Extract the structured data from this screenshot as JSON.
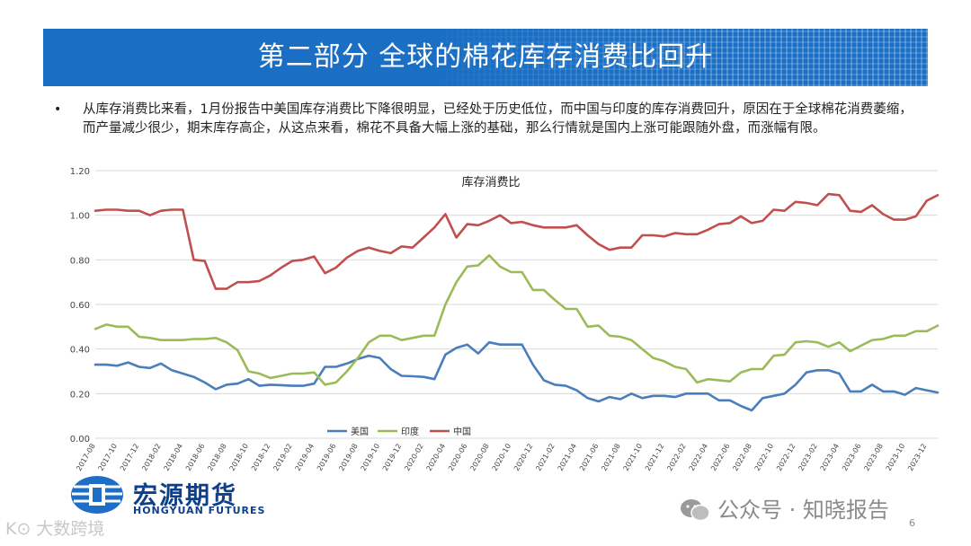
{
  "header": {
    "title": "第二部分  全球的棉花库存消费比回升"
  },
  "body": {
    "bullet": "•",
    "paragraph": "从库存消费比来看，1月份报告中美国库存消费比下降很明显，已经处于历史低位，而中国与印度的库存消费回升，原因在于全球棉花消费萎缩，而产量减少很少，期末库存高企，从这点来看，棉花不具备大幅上涨的基础，那么行情就是国内上涨可能跟随外盘，而涨幅有限。"
  },
  "chart_data": {
    "type": "line",
    "title": "库存消费比",
    "xlabel": "",
    "ylabel": "",
    "ylim": [
      0,
      1.2
    ],
    "yticks": [
      "0.00",
      "0.20",
      "0.40",
      "0.60",
      "0.80",
      "1.00",
      "1.20"
    ],
    "grid": true,
    "legend": "bottom-center",
    "x": [
      "2017-08",
      "2017-09",
      "2017-10",
      "2017-11",
      "2017-12",
      "2018-01",
      "2018-02",
      "2018-03",
      "2018-04",
      "2018-05",
      "2018-06",
      "2018-07",
      "2018-08",
      "2018-09",
      "2018-10",
      "2018-11",
      "2018-12",
      "2019-01",
      "2019-02",
      "2019-03",
      "2019-04",
      "2019-05",
      "2019-06",
      "2019-07",
      "2019-08",
      "2019-09",
      "2019-10",
      "2019-11",
      "2019-12",
      "2020-01",
      "2020-02",
      "2020-03",
      "2020-04",
      "2020-05",
      "2020-06",
      "2020-07",
      "2020-08",
      "2020-09",
      "2020-10",
      "2020-11",
      "2020-12",
      "2021-01",
      "2021-02",
      "2021-03",
      "2021-04",
      "2021-05",
      "2021-06",
      "2021-07",
      "2021-08",
      "2021-09",
      "2021-10",
      "2021-11",
      "2021-12",
      "2022-01",
      "2022-02",
      "2022-03",
      "2022-04",
      "2022-05",
      "2022-06",
      "2022-07",
      "2022-08",
      "2022-09",
      "2022-10",
      "2022-11",
      "2022-12",
      "2023-01",
      "2023-02",
      "2023-03",
      "2023-04",
      "2023-05",
      "2023-06",
      "2023-07",
      "2023-08",
      "2023-09",
      "2023-10",
      "2023-11",
      "2023-12",
      "2024-01"
    ],
    "xtick_labels": [
      "2017-08",
      "2017-10",
      "2017-12",
      "2018-02",
      "2018-04",
      "2018-06",
      "2018-08",
      "2018-10",
      "2018-12",
      "2019-02",
      "2019-04",
      "2019-06",
      "2019-08",
      "2019-10",
      "2019-12",
      "2020-02",
      "2020-04",
      "2020-06",
      "2020-08",
      "2020-10",
      "2020-12",
      "2021-02",
      "2021-04",
      "2021-06",
      "2021-08",
      "2021-10",
      "2021-12",
      "2022-02",
      "2022-04",
      "2022-06",
      "2022-08",
      "2022-10",
      "2022-12",
      "2023-02",
      "2023-04",
      "2023-06",
      "2023-08",
      "2023-10",
      "2023-12"
    ],
    "series": [
      {
        "name": "美国",
        "color": "#4a7ebb",
        "values": [
          0.33,
          0.33,
          0.325,
          0.34,
          0.32,
          0.315,
          0.335,
          0.305,
          0.29,
          0.275,
          0.25,
          0.22,
          0.24,
          0.245,
          0.265,
          0.235,
          0.24,
          0.238,
          0.235,
          0.235,
          0.245,
          0.32,
          0.32,
          0.335,
          0.355,
          0.37,
          0.36,
          0.31,
          0.28,
          0.278,
          0.275,
          0.265,
          0.375,
          0.405,
          0.42,
          0.38,
          0.43,
          0.42,
          0.42,
          0.42,
          0.33,
          0.26,
          0.24,
          0.235,
          0.215,
          0.18,
          0.165,
          0.185,
          0.175,
          0.2,
          0.18,
          0.19,
          0.19,
          0.185,
          0.2,
          0.2,
          0.2,
          0.17,
          0.17,
          0.145,
          0.125,
          0.18,
          0.19,
          0.2,
          0.24,
          0.295,
          0.305,
          0.305,
          0.29,
          0.21,
          0.21,
          0.24,
          0.21,
          0.21,
          0.195,
          0.225,
          0.215,
          0.205
        ]
      },
      {
        "name": "印度",
        "color": "#9bbb59",
        "values": [
          0.49,
          0.51,
          0.5,
          0.5,
          0.455,
          0.45,
          0.44,
          0.44,
          0.44,
          0.445,
          0.445,
          0.45,
          0.43,
          0.395,
          0.3,
          0.29,
          0.27,
          0.28,
          0.29,
          0.29,
          0.295,
          0.24,
          0.25,
          0.3,
          0.36,
          0.43,
          0.46,
          0.46,
          0.44,
          0.45,
          0.46,
          0.46,
          0.6,
          0.7,
          0.77,
          0.775,
          0.82,
          0.77,
          0.745,
          0.745,
          0.665,
          0.665,
          0.62,
          0.58,
          0.58,
          0.5,
          0.505,
          0.46,
          0.455,
          0.44,
          0.4,
          0.36,
          0.345,
          0.32,
          0.31,
          0.25,
          0.265,
          0.26,
          0.255,
          0.295,
          0.31,
          0.31,
          0.37,
          0.375,
          0.43,
          0.435,
          0.43,
          0.41,
          0.43,
          0.39,
          0.415,
          0.44,
          0.445,
          0.46,
          0.46,
          0.48,
          0.48,
          0.505
        ]
      },
      {
        "name": "中国",
        "color": "#c0504d",
        "values": [
          1.02,
          1.025,
          1.025,
          1.02,
          1.02,
          1.0,
          1.02,
          1.025,
          1.025,
          0.8,
          0.795,
          0.67,
          0.67,
          0.7,
          0.7,
          0.705,
          0.73,
          0.765,
          0.795,
          0.8,
          0.815,
          0.74,
          0.765,
          0.81,
          0.84,
          0.855,
          0.84,
          0.83,
          0.86,
          0.855,
          0.9,
          0.945,
          1.005,
          0.9,
          0.96,
          0.955,
          0.975,
          1.0,
          0.965,
          0.97,
          0.955,
          0.945,
          0.945,
          0.945,
          0.955,
          0.91,
          0.87,
          0.845,
          0.855,
          0.855,
          0.91,
          0.91,
          0.905,
          0.92,
          0.915,
          0.915,
          0.935,
          0.96,
          0.965,
          0.995,
          0.965,
          0.975,
          1.025,
          1.02,
          1.06,
          1.055,
          1.045,
          1.095,
          1.09,
          1.02,
          1.015,
          1.045,
          1.005,
          0.98,
          0.98,
          0.995,
          1.065,
          1.09
        ]
      }
    ]
  },
  "logo": {
    "name_cn": "宏源期货",
    "name_en": "HONGYUAN FUTURES"
  },
  "watermarks": {
    "left": "K⊙ 大数跨境",
    "right": "公众号 · 知晓报告"
  },
  "page": {
    "number": "6"
  }
}
